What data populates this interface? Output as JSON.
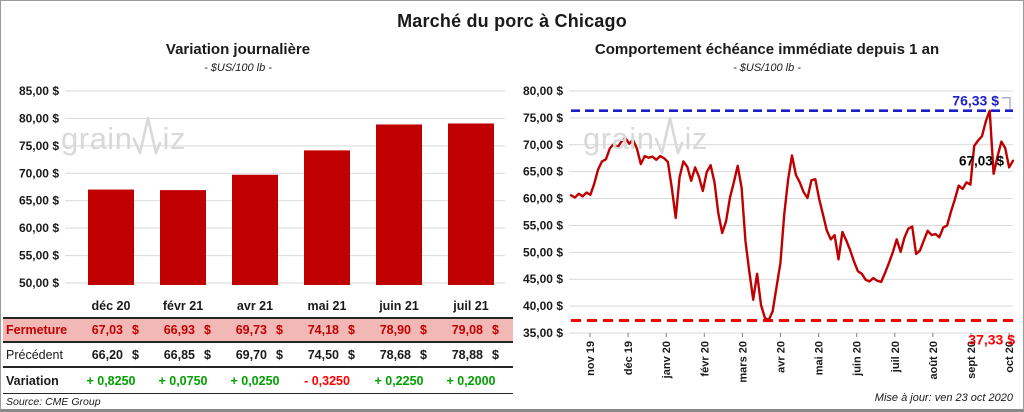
{
  "page": {
    "title": "Marché du porc à Chicago",
    "watermark": {
      "part1": "grain",
      "part2": "iz"
    },
    "source": "Source: CME Group",
    "updated": "Mise à jour: ven 23 oct 2020"
  },
  "colors": {
    "series_red": "#C00000",
    "positive_green": "#00A000",
    "negative_red": "#FE0000",
    "resistance_blue": "#1E1EC8",
    "support_red": "#FE0000",
    "fermeture_bg": "#F2B8B6",
    "gridline": "#D9D9D9"
  },
  "table": {
    "columns": [
      "déc 20",
      "févr 21",
      "avr 21",
      "mai 21",
      "juin 21",
      "juil 21"
    ],
    "currency": "$",
    "rows": {
      "fermeture": {
        "label": "Fermeture",
        "values": [
          "67,03",
          "66,93",
          "69,73",
          "74,18",
          "78,90",
          "79,08"
        ]
      },
      "precedent": {
        "label": "Précédent",
        "values": [
          "66,20",
          "66,85",
          "69,70",
          "74,50",
          "78,68",
          "78,88"
        ]
      },
      "variation": {
        "label": "Variation",
        "values": [
          "+ 0,8250",
          "+ 0,0750",
          "+ 0,0250",
          "- 0,3250",
          "+ 0,2250",
          "+ 0,2000"
        ],
        "signs": [
          "pos",
          "pos",
          "pos",
          "neg",
          "pos",
          "pos"
        ]
      }
    }
  },
  "chart_data": [
    {
      "type": "bar",
      "title": "Variation journalière",
      "subtitle": "- $US/100 lb -",
      "categories": [
        "déc 20",
        "févr 21",
        "avr 21",
        "mai 21",
        "juin 21",
        "juil 21"
      ],
      "values": [
        67.03,
        66.93,
        69.73,
        74.18,
        78.9,
        79.08
      ],
      "bar_color": "#C00000",
      "ylim": [
        50,
        85
      ],
      "ytick_step": 5,
      "ytick_labels": [
        "85,00 $",
        "80,00 $",
        "75,00 $",
        "70,00 $",
        "65,00 $",
        "60,00 $",
        "55,00 $",
        "50,00 $"
      ],
      "grid": true
    },
    {
      "type": "line",
      "title": "Comportement échéance immédiate depuis 1 an",
      "subtitle": "- $US/100 lb -",
      "line_color": "#C00000",
      "ylim": [
        35,
        80
      ],
      "ytick_step": 5,
      "ytick_labels": [
        "80,00 $",
        "75,00 $",
        "70,00 $",
        "65,00 $",
        "60,00 $",
        "55,00 $",
        "50,00 $",
        "45,00 $",
        "40,00 $",
        "35,00 $"
      ],
      "xtick_labels": [
        "nov 19",
        "déc 19",
        "janv 20",
        "févr 20",
        "mars 20",
        "avr 20",
        "mai 20",
        "juin 20",
        "juil 20",
        "août 20",
        "sept 20",
        "oct 20"
      ],
      "grid": true,
      "hlines": [
        {
          "value": 76.33,
          "label": "76,33 $",
          "color": "#1E1EC8",
          "style": "dashed"
        },
        {
          "value": 37.33,
          "label": "37,33 $",
          "color": "#FE0000",
          "style": "dashed"
        }
      ],
      "end_label": {
        "value": 67.03,
        "label": "67,03 $",
        "color": "#000000"
      },
      "values": [
        60.6,
        60.2,
        60.9,
        60.4,
        61.1,
        60.7,
        62.8,
        65.4,
        66.9,
        67.3,
        69.3,
        70.1,
        69.5,
        70.6,
        71.3,
        70.2,
        70.9,
        69.3,
        66.4,
        67.9,
        67.6,
        67.8,
        67.2,
        67.9,
        67.5,
        66.8,
        62.0,
        56.4,
        64.0,
        66.9,
        65.9,
        63.3,
        65.8,
        64.1,
        61.4,
        64.9,
        66.2,
        63.0,
        57.3,
        53.6,
        55.8,
        60.2,
        63.0,
        66.1,
        62.0,
        52.0,
        46.3,
        41.2,
        46.0,
        40.2,
        37.8,
        37.4,
        39.0,
        43.5,
        48.0,
        57.0,
        63.5,
        68.0,
        64.4,
        63.0,
        61.2,
        60.1,
        63.4,
        63.6,
        60.0,
        57.0,
        54.0,
        52.4,
        53.2,
        48.7,
        53.8,
        52.2,
        50.4,
        48.3,
        46.5,
        46.0,
        44.9,
        44.6,
        45.2,
        44.7,
        44.5,
        46.2,
        48.0,
        50.0,
        52.4,
        50.1,
        52.7,
        54.4,
        54.8,
        49.7,
        50.3,
        52.2,
        54.0,
        53.2,
        53.4,
        52.8,
        54.6,
        55.0,
        57.6,
        59.8,
        62.4,
        61.8,
        63.0,
        62.6,
        69.8,
        70.8,
        71.6,
        74.4,
        76.33,
        64.6,
        67.8,
        70.6,
        69.4,
        65.8,
        67.03
      ]
    }
  ]
}
